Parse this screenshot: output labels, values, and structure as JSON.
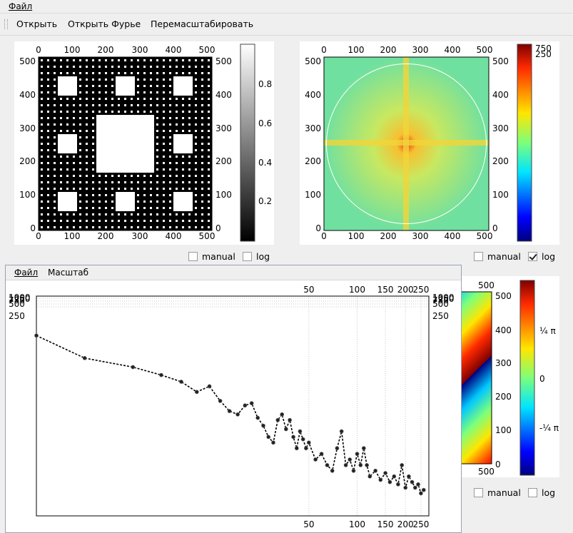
{
  "menubar": {
    "file": "Файл"
  },
  "toolbar": {
    "open": "Открыть",
    "open_fourier": "Открыть Фурье",
    "rescale": "Перемасштабировать"
  },
  "image_panel": {
    "x_ticks": [
      "0",
      "100",
      "200",
      "300",
      "400",
      "500"
    ],
    "y_ticks": [
      "500",
      "400",
      "300",
      "200",
      "100",
      "0"
    ],
    "colorbar_ticks": [
      "0.8",
      "0.6",
      "0.4",
      "0.2"
    ],
    "manual_label": "manual",
    "log_label": "log",
    "manual_checked": false,
    "log_checked": false
  },
  "fourier_panel": {
    "x_ticks": [
      "0",
      "100",
      "200",
      "300",
      "400",
      "500"
    ],
    "y_ticks": [
      "500",
      "400",
      "300",
      "200",
      "100",
      "0"
    ],
    "colorbar_ticks": [
      "750",
      "250"
    ],
    "manual_label": "manual",
    "log_label": "log",
    "manual_checked": false,
    "log_checked": true
  },
  "phase_panel": {
    "top_tick": "500",
    "y_ticks": [
      "500",
      "400",
      "300",
      "200",
      "100",
      "0"
    ],
    "bottom_tick": "500",
    "colorbar_ticks": [
      "¼ π",
      "0",
      "-¼ π"
    ],
    "manual_label": "manual",
    "log_label": "log",
    "manual_checked": false,
    "log_checked": false
  },
  "spectrum_window": {
    "menu": {
      "file": "Файл",
      "scale": "Масштаб"
    },
    "x_tick_labels": [
      "50",
      "100",
      "150",
      "200",
      "250"
    ],
    "y_tick_labels": [
      "1250",
      "1000",
      "750",
      "500",
      "250"
    ]
  },
  "chart_data": {
    "type": "line",
    "x_scale": "log",
    "series": [
      {
        "points": [
          [
            1,
            3.2
          ],
          [
            2,
            3.0
          ],
          [
            4,
            2.92
          ],
          [
            6,
            2.85
          ],
          [
            8,
            2.79
          ],
          [
            10,
            2.7
          ],
          [
            12,
            2.75
          ],
          [
            14,
            2.62
          ],
          [
            16,
            2.53
          ],
          [
            18,
            2.5
          ],
          [
            20,
            2.58
          ],
          [
            22,
            2.6
          ],
          [
            24,
            2.47
          ],
          [
            26,
            2.4
          ],
          [
            28,
            2.3
          ],
          [
            30,
            2.25
          ],
          [
            32,
            2.45
          ],
          [
            34,
            2.5
          ],
          [
            36,
            2.37
          ],
          [
            38,
            2.45
          ],
          [
            40,
            2.3
          ],
          [
            42,
            2.2
          ],
          [
            44,
            2.35
          ],
          [
            46,
            2.28
          ],
          [
            48,
            2.2
          ],
          [
            50,
            2.25
          ],
          [
            55,
            2.1
          ],
          [
            60,
            2.15
          ],
          [
            65,
            2.05
          ],
          [
            70,
            2.0
          ],
          [
            75,
            2.2
          ],
          [
            80,
            2.35
          ],
          [
            85,
            2.05
          ],
          [
            90,
            2.1
          ],
          [
            95,
            2.0
          ],
          [
            100,
            2.15
          ],
          [
            105,
            2.05
          ],
          [
            110,
            2.2
          ],
          [
            115,
            2.05
          ],
          [
            120,
            1.95
          ],
          [
            130,
            2.0
          ],
          [
            140,
            1.92
          ],
          [
            150,
            1.98
          ],
          [
            160,
            1.9
          ],
          [
            170,
            1.95
          ],
          [
            180,
            1.88
          ],
          [
            190,
            2.05
          ],
          [
            200,
            1.85
          ],
          [
            210,
            1.95
          ],
          [
            220,
            1.9
          ],
          [
            230,
            1.85
          ],
          [
            240,
            1.88
          ],
          [
            250,
            1.8
          ],
          [
            260,
            1.83
          ]
        ]
      }
    ]
  }
}
